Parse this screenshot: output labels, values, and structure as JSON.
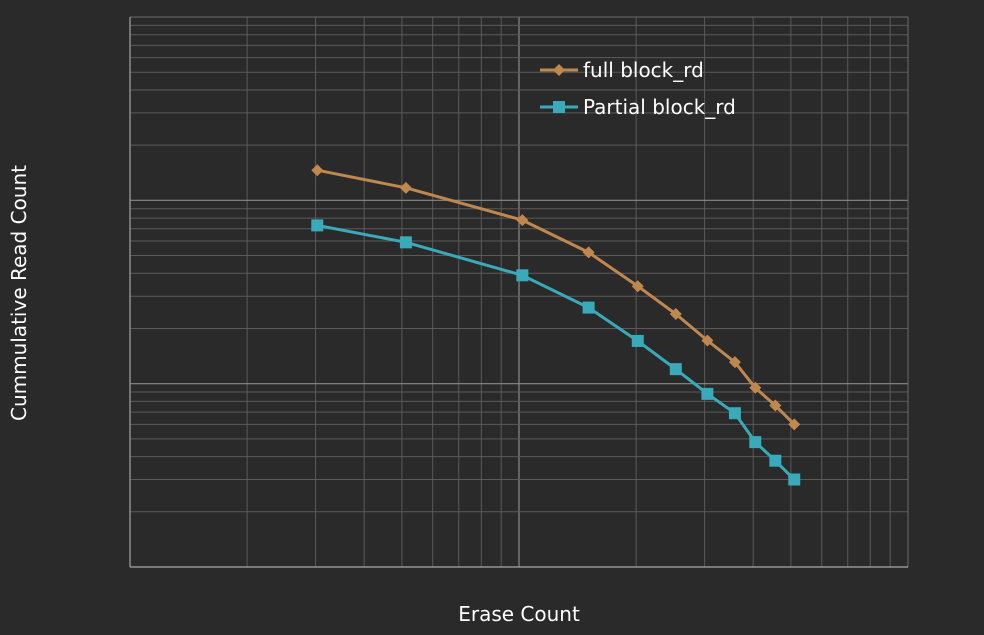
{
  "chart_data": {
    "type": "line",
    "title": "",
    "xlabel": "Erase Count",
    "ylabel": "Cummulative Read Count",
    "x_scale": "log",
    "y_scale": "log",
    "xlim": [
      1,
      100
    ],
    "ylim": [
      1,
      1000
    ],
    "grid": true,
    "tick_labels_shown": false,
    "legend_position": "top-right",
    "series": [
      {
        "name": "full block_rd",
        "color": "#c0884e",
        "marker": "diamond",
        "points": [
          {
            "x": 3.03,
            "y": 146
          },
          {
            "x": 5.12,
            "y": 117
          },
          {
            "x": 10.2,
            "y": 78
          },
          {
            "x": 15.1,
            "y": 52
          },
          {
            "x": 20.2,
            "y": 34
          },
          {
            "x": 25.3,
            "y": 24
          },
          {
            "x": 30.5,
            "y": 17.2
          },
          {
            "x": 35.9,
            "y": 13.1
          },
          {
            "x": 40.5,
            "y": 9.5
          },
          {
            "x": 45.6,
            "y": 7.6
          },
          {
            "x": 51.0,
            "y": 6.0
          }
        ]
      },
      {
        "name": "Partial block_rd",
        "color": "#39aab9",
        "marker": "square",
        "points": [
          {
            "x": 3.03,
            "y": 73
          },
          {
            "x": 5.12,
            "y": 59
          },
          {
            "x": 10.2,
            "y": 39
          },
          {
            "x": 15.1,
            "y": 26
          },
          {
            "x": 20.2,
            "y": 17.1
          },
          {
            "x": 25.3,
            "y": 12.0
          },
          {
            "x": 30.5,
            "y": 8.8
          },
          {
            "x": 35.9,
            "y": 6.9
          },
          {
            "x": 40.5,
            "y": 4.8
          },
          {
            "x": 45.6,
            "y": 3.8
          },
          {
            "x": 51.0,
            "y": 3.0
          }
        ]
      }
    ]
  }
}
